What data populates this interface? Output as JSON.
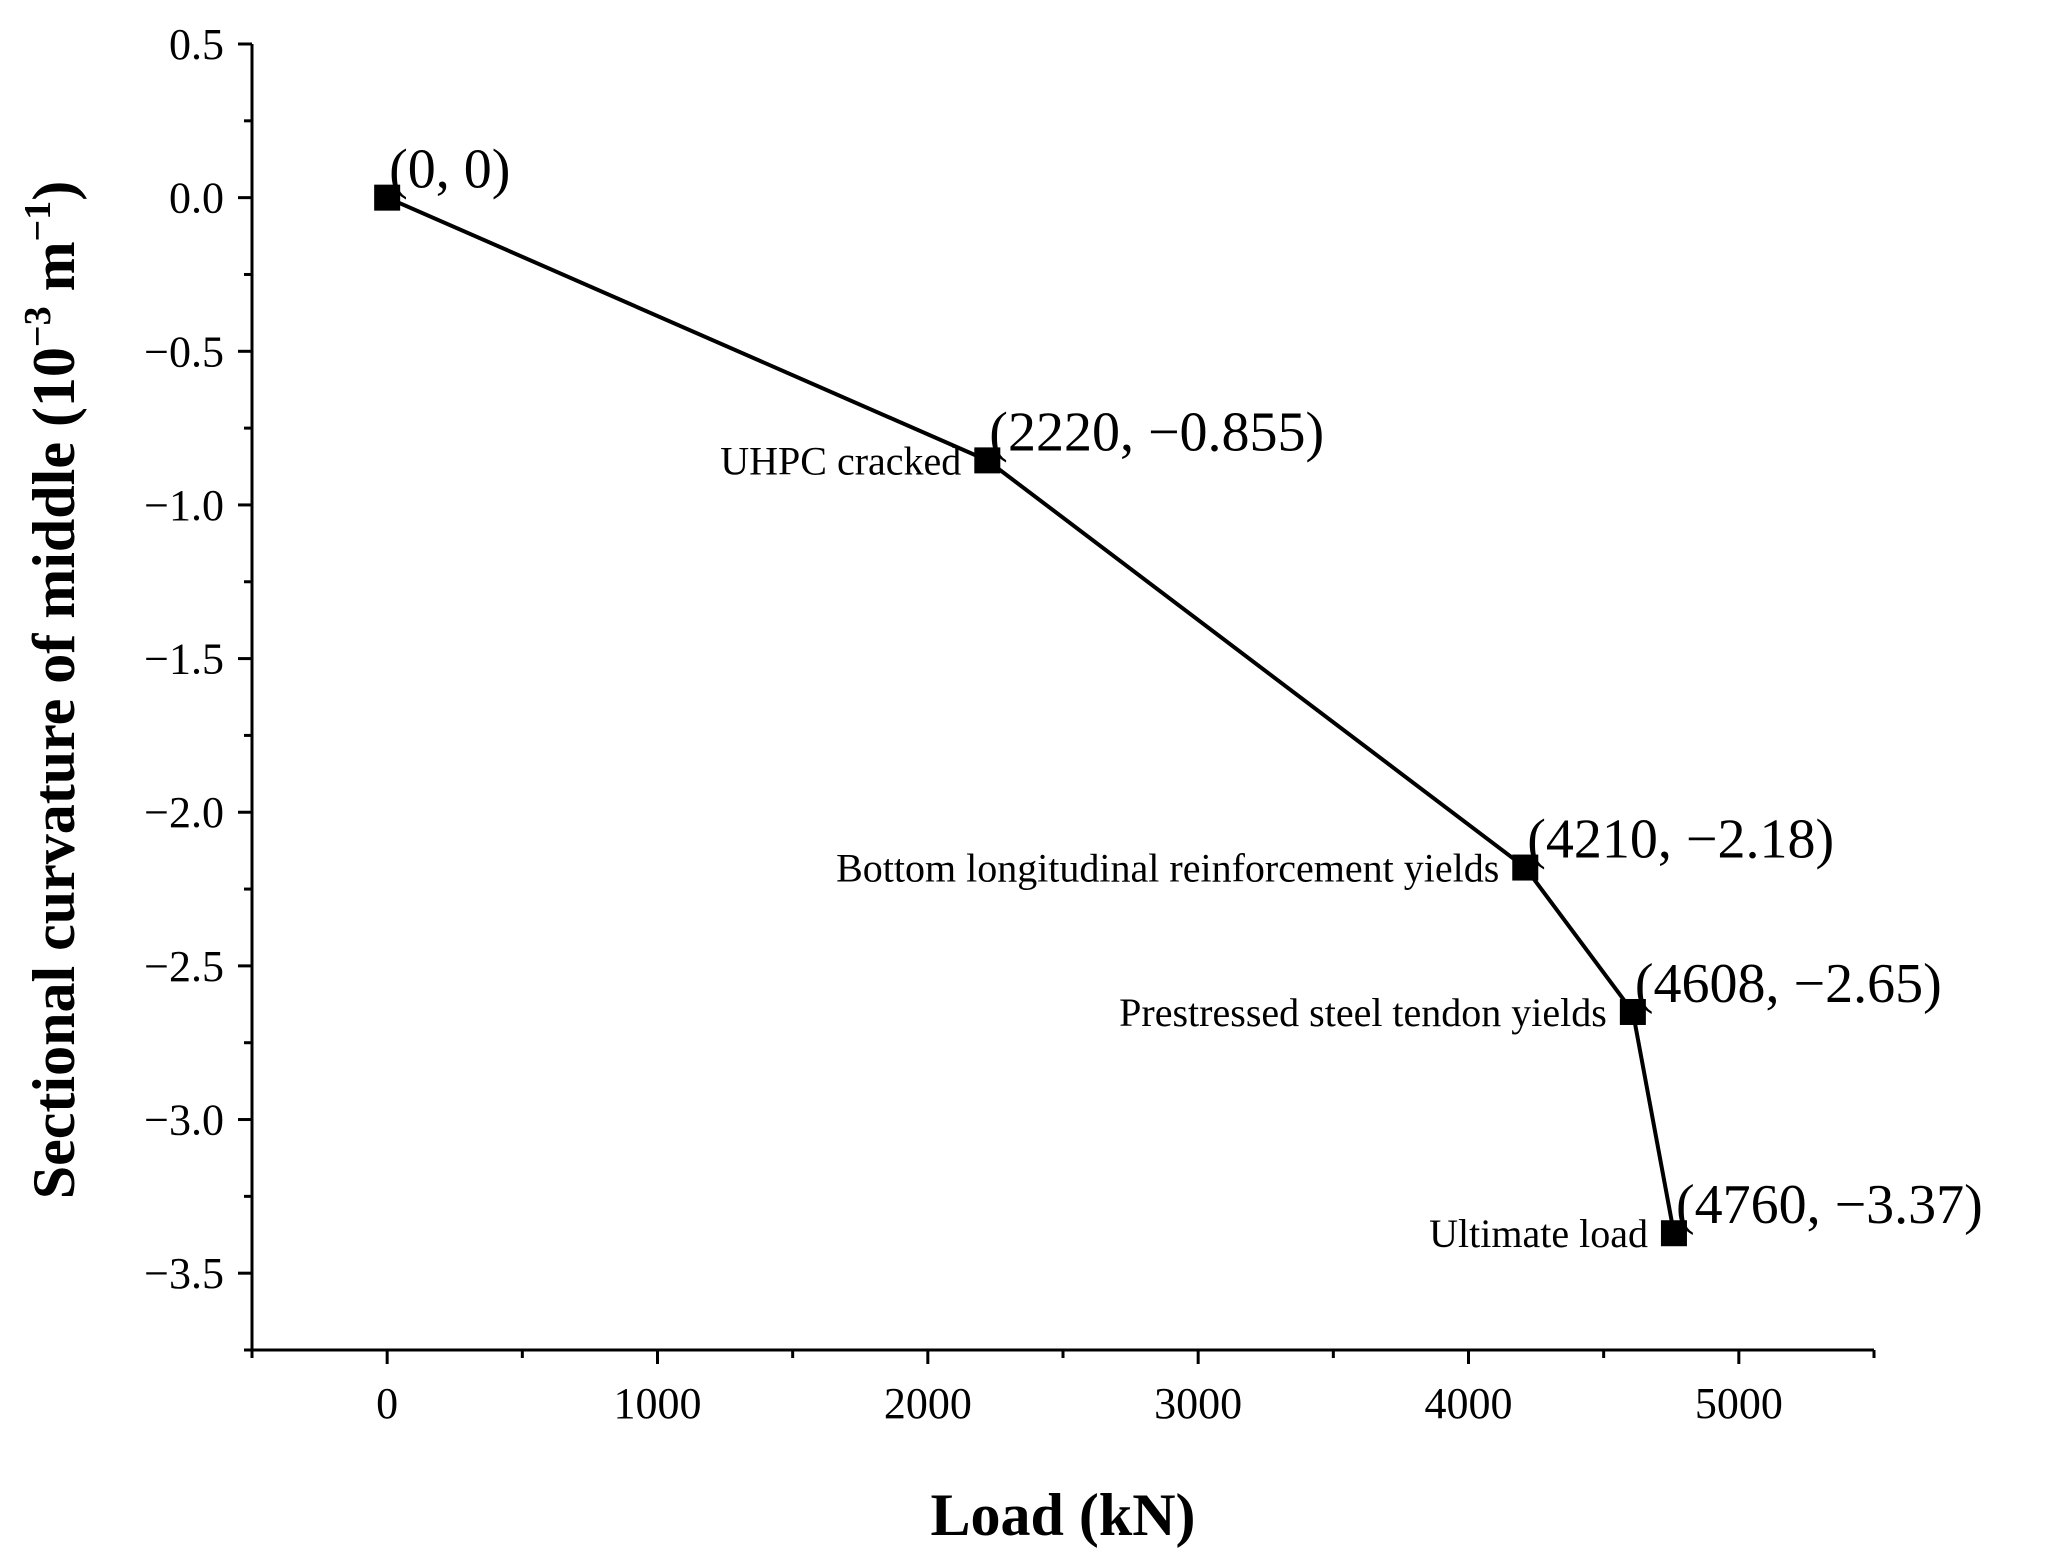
{
  "chart_data": {
    "type": "line",
    "xlabel": "Load (kN)",
    "ylabel_main": "Sectional curvature of middle (10",
    "ylabel_exp": "−3",
    "ylabel_mid": " m",
    "ylabel_exp2": "−1",
    "ylabel_end": ")",
    "xlim": [
      -500,
      5500
    ],
    "ylim": [
      -3.75,
      0.5
    ],
    "x_ticks": [
      0,
      1000,
      2000,
      3000,
      4000,
      5000
    ],
    "x_tick_labels": [
      "0",
      "1000",
      "2000",
      "3000",
      "4000",
      "5000"
    ],
    "y_ticks": [
      0.5,
      0.0,
      -0.5,
      -1.0,
      -1.5,
      -2.0,
      -2.5,
      -3.0,
      -3.5
    ],
    "y_tick_labels": [
      "0.5",
      "0.0",
      "−0.5",
      "−1.0",
      "−1.5",
      "−2.0",
      "−2.5",
      "−3.0",
      "−3.5"
    ],
    "grid": false,
    "series": [
      {
        "marker": "square",
        "color": "#000000",
        "x": [
          0,
          2220,
          4210,
          4608,
          4760
        ],
        "y": [
          0,
          -0.855,
          -2.18,
          -2.65,
          -3.37
        ]
      }
    ],
    "point_labels": [
      "(0, 0)",
      "(2220, −0.855)",
      "(4210, −2.18)",
      "(4608, −2.65)",
      "(4760, −3.37)"
    ],
    "annotations": [
      "",
      "UHPC cracked",
      "Bottom longitudinal reinforcement yields",
      "Prestressed steel tendon yields",
      "Ultimate load"
    ]
  }
}
